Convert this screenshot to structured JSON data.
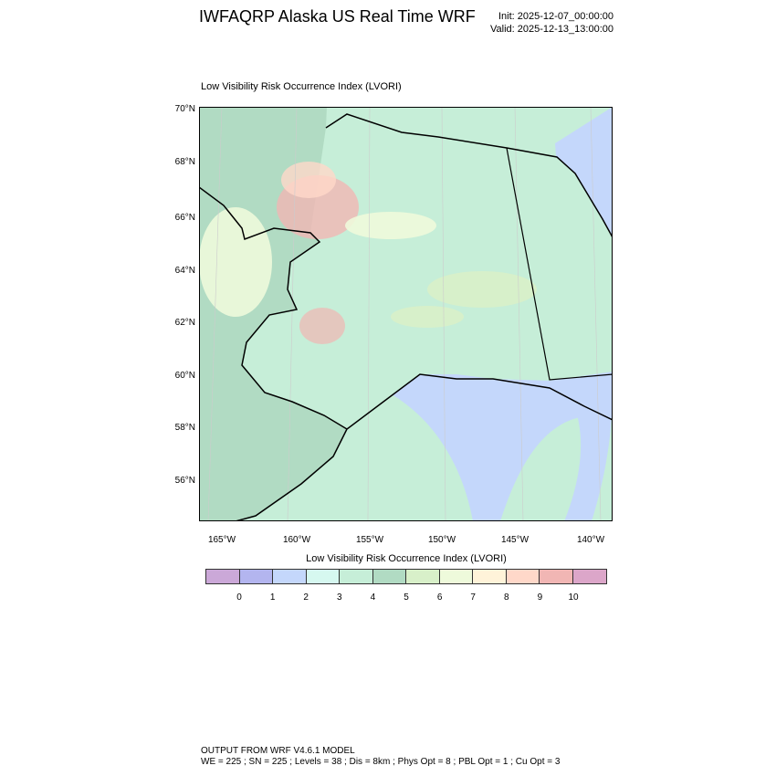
{
  "header": {
    "title": "IWFAQRP Alaska US Real Time WRF",
    "init": "Init: 2025-12-07_00:00:00",
    "valid": "Valid: 2025-12-13_13:00:00"
  },
  "subtitle": "Low Visibility Risk Occurrence Index   (LVORI)",
  "map": {
    "lat_labels": [
      "70°N",
      "68°N",
      "66°N",
      "64°N",
      "62°N",
      "60°N",
      "58°N",
      "56°N"
    ],
    "lon_labels": [
      "165°W",
      "160°W",
      "155°W",
      "150°W",
      "145°W",
      "140°W"
    ]
  },
  "colorbar": {
    "title": "Low Visibility Risk Occurrence Index  (LVORI)",
    "labels": [
      "0",
      "1",
      "2",
      "3",
      "4",
      "5",
      "6",
      "7",
      "8",
      "9",
      "10"
    ],
    "colors": [
      "#cba8d8",
      "#b3b5ef",
      "#c4d7fb",
      "#d6f8f0",
      "#c6eed8",
      "#b1dbc3",
      "#d8f0c9",
      "#eefadb",
      "#fff3d9",
      "#ffd8c9",
      "#f1b6b4",
      "#dca6c9"
    ]
  },
  "footer": {
    "line1": "OUTPUT FROM WRF V4.6.1 MODEL",
    "line2": "WE = 225 ; SN = 225 ; Levels = 38 ; Dis = 8km ; Phys Opt = 8 ; PBL Opt = 1 ; Cu Opt = 3"
  }
}
